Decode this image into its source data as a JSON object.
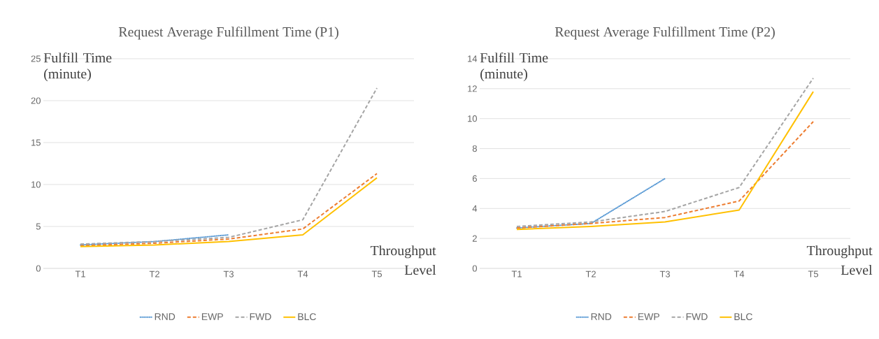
{
  "chart_data": [
    {
      "type": "line",
      "title": "Request Average Fulfillment Time (P1)",
      "xlabel": "Throughput Level",
      "ylabel": "Fulfill Time (minute)",
      "categories": [
        "T1",
        "T2",
        "T3",
        "T4",
        "T5"
      ],
      "ylim": [
        0,
        25
      ],
      "yticks": [
        0,
        5,
        10,
        15,
        20,
        25
      ],
      "grid": "y",
      "legend": "bottom",
      "series": [
        {
          "name": "RND",
          "color": "#5b9bd5",
          "line_style": "dotted",
          "values": [
            2.8,
            3.2,
            4.0,
            null,
            null
          ]
        },
        {
          "name": "EWP",
          "color": "#ed7d31",
          "line_style": "dashed",
          "values": [
            2.7,
            3.0,
            3.5,
            4.7,
            11.3
          ]
        },
        {
          "name": "FWD",
          "color": "#a5a5a5",
          "line_style": "dashed",
          "values": [
            2.9,
            3.2,
            3.7,
            5.8,
            21.5
          ]
        },
        {
          "name": "BLC",
          "color": "#ffc000",
          "line_style": "solid",
          "values": [
            2.6,
            2.8,
            3.2,
            4.0,
            10.8
          ]
        }
      ]
    },
    {
      "type": "line",
      "title": "Request Average Fulfillment Time (P2)",
      "xlabel": "Throughput Level",
      "ylabel": "Fulfill Time (minute)",
      "categories": [
        "T1",
        "T2",
        "T3",
        "T4",
        "T5"
      ],
      "ylim": [
        0,
        14
      ],
      "yticks": [
        0,
        2,
        4,
        6,
        8,
        10,
        12,
        14
      ],
      "grid": "y",
      "legend": "bottom",
      "series": [
        {
          "name": "RND",
          "color": "#5b9bd5",
          "line_style": "dotted",
          "values": [
            2.7,
            3.0,
            6.0,
            null,
            null
          ]
        },
        {
          "name": "EWP",
          "color": "#ed7d31",
          "line_style": "dashed",
          "values": [
            2.7,
            3.0,
            3.4,
            4.5,
            9.8
          ]
        },
        {
          "name": "FWD",
          "color": "#a5a5a5",
          "line_style": "dashed",
          "values": [
            2.8,
            3.1,
            3.8,
            5.4,
            12.7
          ]
        },
        {
          "name": "BLC",
          "color": "#ffc000",
          "line_style": "solid",
          "values": [
            2.6,
            2.8,
            3.1,
            3.9,
            11.8
          ]
        }
      ]
    }
  ]
}
